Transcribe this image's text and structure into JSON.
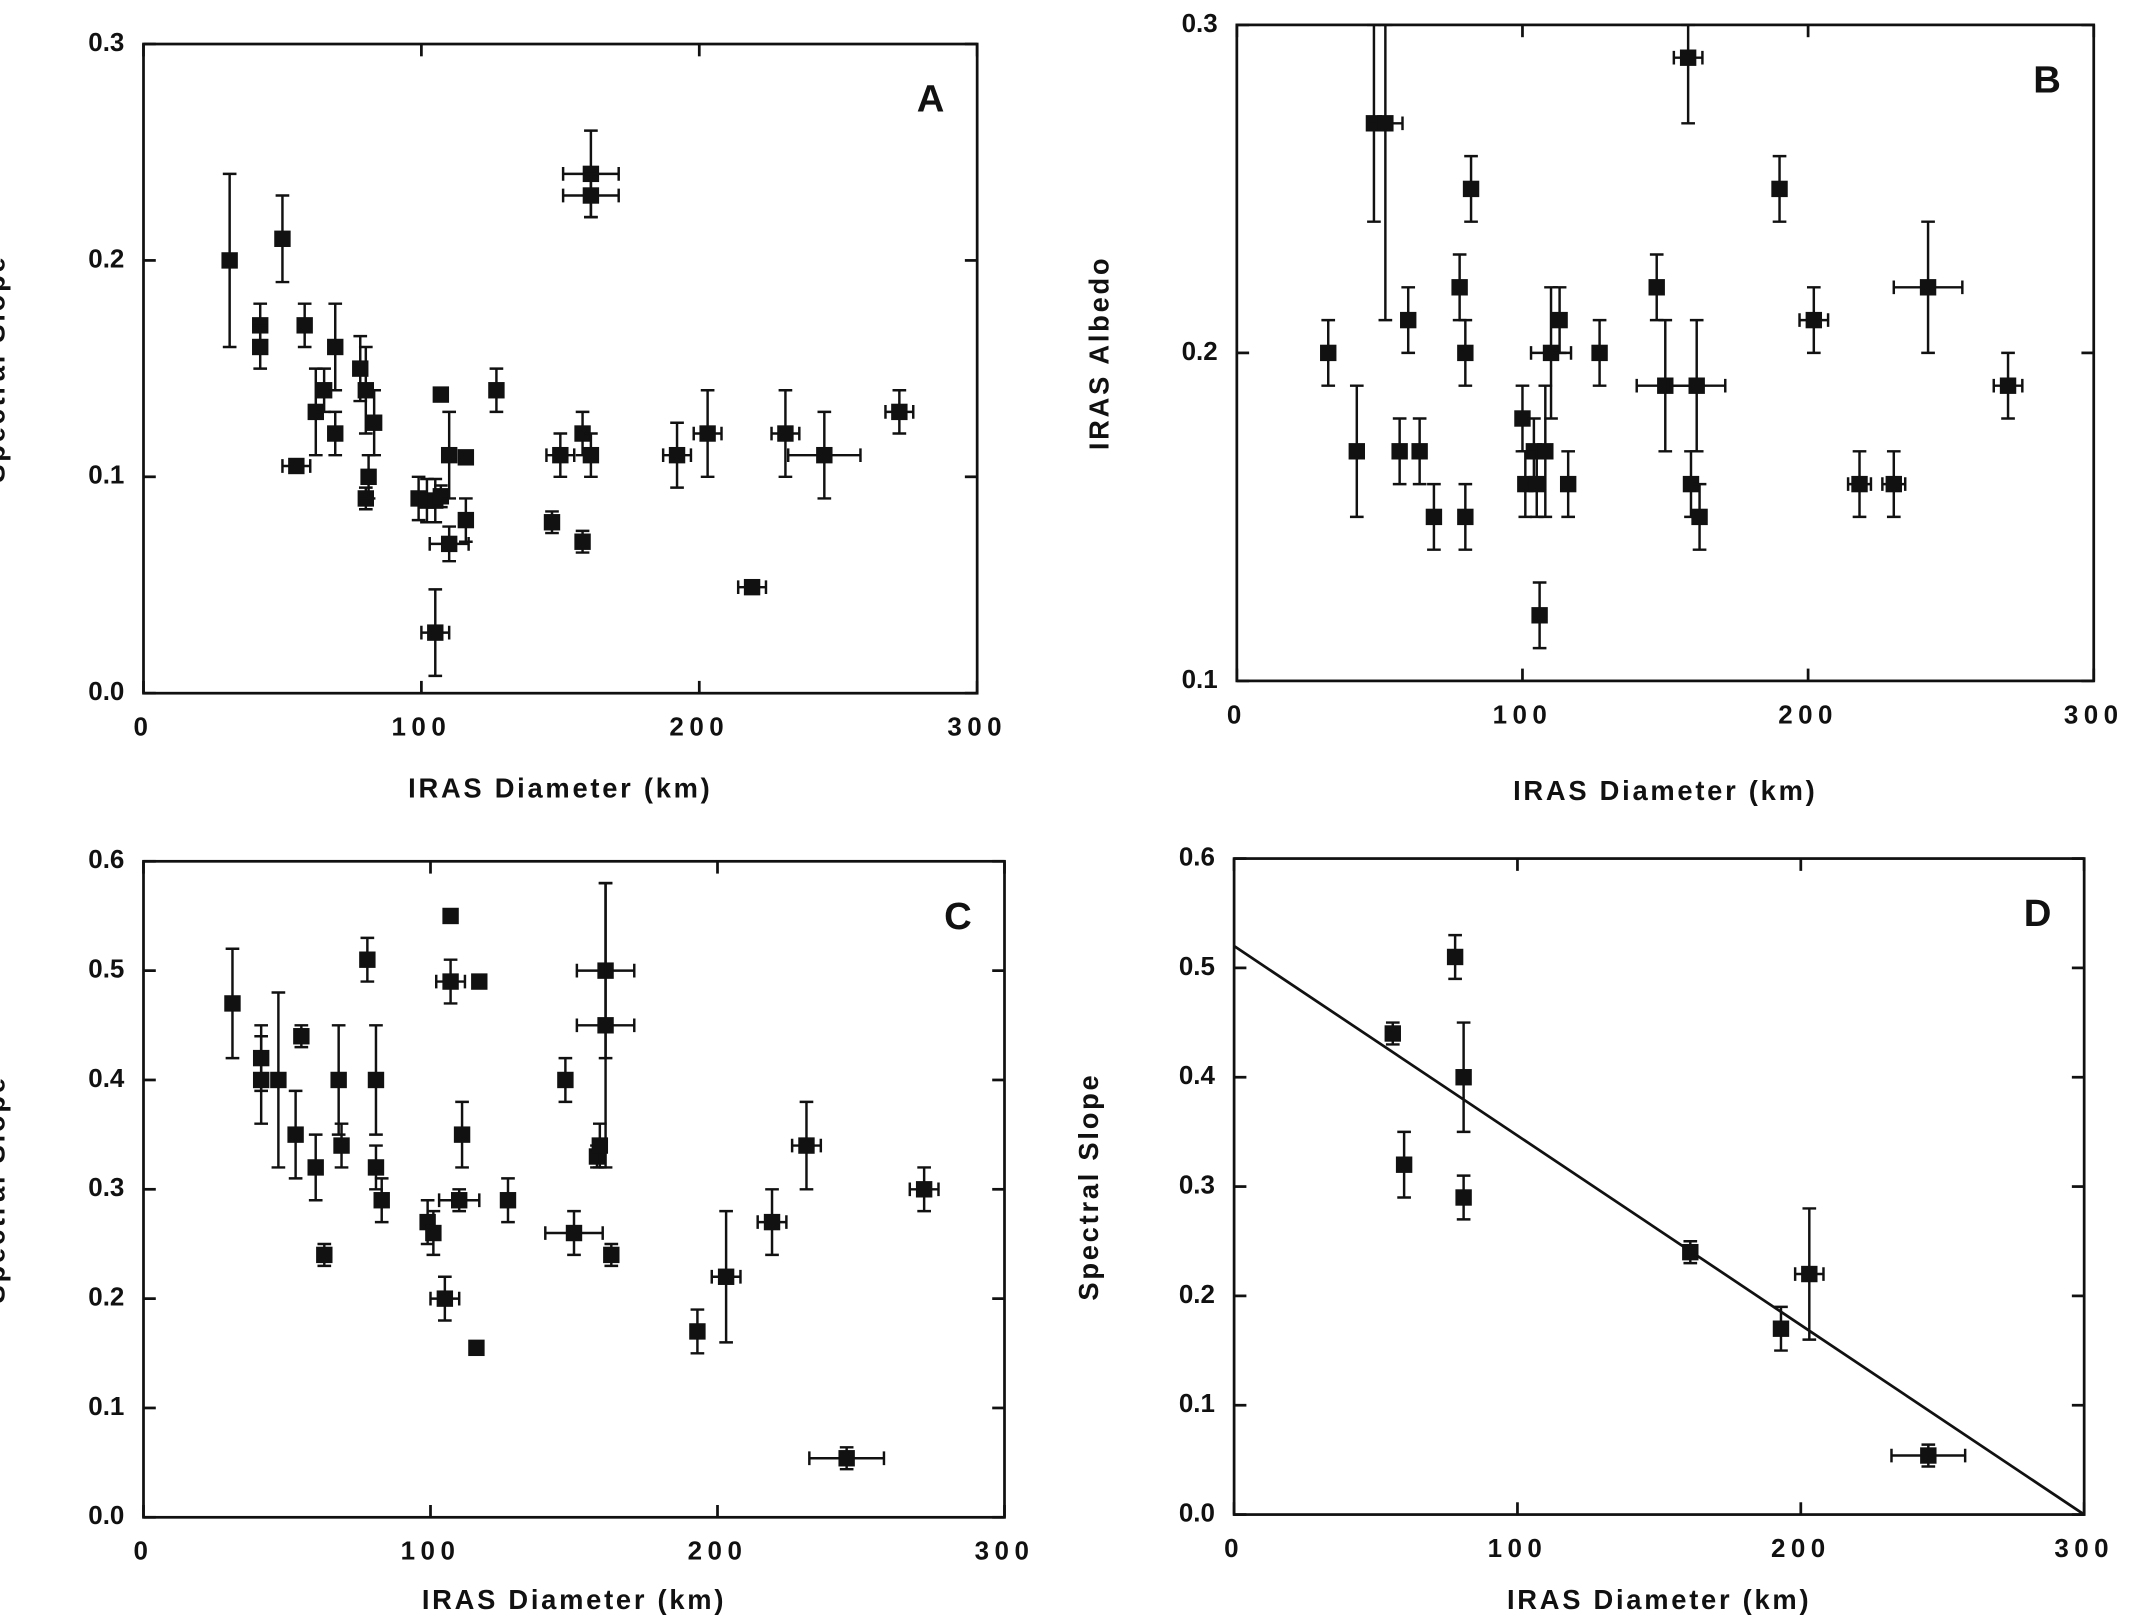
{
  "chart_data": [
    {
      "type": "scatter",
      "label": "A",
      "x_label": "IRAS  Diameter  (km)",
      "y_label": "Spectral  Slope",
      "xlim": [
        0,
        300
      ],
      "ylim": [
        0,
        0.3
      ],
      "xticks": [
        0,
        100,
        200,
        300
      ],
      "yticks": [
        {
          "value": 0,
          "label": "0.0"
        },
        0.1,
        0.2,
        0.3
      ],
      "color": "#111111",
      "x": [
        31,
        42,
        42,
        50,
        55,
        58,
        62,
        65,
        69,
        69,
        78,
        80,
        80,
        81,
        83,
        99,
        102,
        105,
        107,
        107,
        105,
        110,
        110,
        116,
        116,
        127,
        147,
        150,
        158,
        158,
        161,
        161,
        161,
        192,
        203,
        219,
        231,
        245,
        272
      ],
      "values": [
        0.2,
        0.17,
        0.16,
        0.21,
        0.105,
        0.17,
        0.13,
        0.14,
        0.16,
        0.12,
        0.15,
        0.14,
        0.09,
        0.1,
        0.125,
        0.09,
        0.089,
        0.089,
        0.091,
        0.138,
        0.028,
        0.11,
        0.069,
        0.109,
        0.08,
        0.14,
        0.079,
        0.11,
        0.12,
        0.07,
        0.11,
        0.24,
        0.23,
        0.11,
        0.12,
        0.049,
        0.12,
        0.11,
        0.13
      ],
      "y_err": [
        0.04,
        0.01,
        0.01,
        0.02,
        0.003,
        0.01,
        0.02,
        0.01,
        0.02,
        0.01,
        0.015,
        0.02,
        0.005,
        0.01,
        0.015,
        0.01,
        0.01,
        0.01,
        0.005,
        0.003,
        0.02,
        0.02,
        0.008,
        0.003,
        0.01,
        0.01,
        0.005,
        0.01,
        0.01,
        0.005,
        0.01,
        0.02,
        0.01,
        0.015,
        0.02,
        0.002,
        0.02,
        0.02,
        0.01
      ],
      "x_err": [
        null,
        null,
        null,
        null,
        5,
        null,
        null,
        null,
        null,
        null,
        null,
        null,
        null,
        null,
        null,
        null,
        null,
        null,
        null,
        null,
        5,
        null,
        7,
        null,
        null,
        null,
        null,
        5,
        null,
        null,
        null,
        10,
        10,
        5,
        5,
        5,
        5,
        13,
        5
      ]
    },
    {
      "type": "scatter",
      "label": "B",
      "x_label": "IRAS  Diameter  (km)",
      "y_label": "IRAS  Albedo",
      "xlim": [
        0,
        300
      ],
      "ylim": [
        0.1,
        0.3
      ],
      "xticks": [
        0,
        100,
        200,
        300
      ],
      "yticks": [
        0.1,
        0.2,
        0.3
      ],
      "color": "#111111",
      "x": [
        32,
        42,
        48,
        52,
        57,
        60,
        64,
        69,
        78,
        80,
        80,
        82,
        100,
        101,
        104,
        105,
        106,
        108,
        110,
        113,
        116,
        127,
        147,
        150,
        158,
        159,
        161,
        162,
        190,
        202,
        218,
        230,
        242,
        270
      ],
      "values": [
        0.2,
        0.17,
        0.27,
        0.27,
        0.17,
        0.21,
        0.17,
        0.15,
        0.22,
        0.2,
        0.15,
        0.25,
        0.18,
        0.16,
        0.17,
        0.16,
        0.12,
        0.17,
        0.2,
        0.21,
        0.16,
        0.2,
        0.22,
        0.19,
        0.29,
        0.16,
        0.19,
        0.15,
        0.25,
        0.21,
        0.16,
        0.16,
        0.22,
        0.19
      ],
      "y_err": [
        0.01,
        0.02,
        0.03,
        0.06,
        0.01,
        0.01,
        0.01,
        0.01,
        0.01,
        0.01,
        0.01,
        0.01,
        0.01,
        0.01,
        0.01,
        0.01,
        0.01,
        0.02,
        0.02,
        0.01,
        0.01,
        0.01,
        0.01,
        0.02,
        0.02,
        0.01,
        0.02,
        0.01,
        0.01,
        0.01,
        0.01,
        0.01,
        0.02,
        0.01
      ],
      "x_err": [
        null,
        null,
        null,
        6,
        null,
        null,
        null,
        null,
        null,
        null,
        null,
        null,
        null,
        null,
        null,
        null,
        null,
        null,
        7,
        null,
        null,
        null,
        null,
        10,
        5,
        null,
        10,
        null,
        null,
        5,
        4,
        4,
        12,
        5
      ]
    },
    {
      "type": "scatter",
      "label": "C",
      "x_label": "IRAS  Diameter  (km)",
      "y_label": "Spectral  Slope",
      "xlim": [
        0,
        300
      ],
      "ylim": [
        0,
        0.6
      ],
      "xticks": [
        0,
        100,
        200,
        300
      ],
      "yticks": [
        {
          "value": 0,
          "label": "0.0"
        },
        0.1,
        0.2,
        0.3,
        0.4,
        0.5,
        0.6
      ],
      "color": "#111111",
      "x": [
        31,
        41,
        41,
        47,
        53,
        55,
        60,
        63,
        68,
        69,
        78,
        81,
        81,
        83,
        99,
        101,
        105,
        107,
        107,
        110,
        111,
        116,
        117,
        127,
        147,
        150,
        158,
        159,
        161,
        161,
        163,
        193,
        203,
        219,
        231,
        245,
        272
      ],
      "values": [
        0.47,
        0.42,
        0.4,
        0.4,
        0.35,
        0.44,
        0.32,
        0.24,
        0.4,
        0.34,
        0.51,
        0.4,
        0.32,
        0.29,
        0.27,
        0.26,
        0.2,
        0.49,
        0.55,
        0.29,
        0.35,
        0.155,
        0.49,
        0.29,
        0.4,
        0.26,
        0.33,
        0.34,
        0.5,
        0.45,
        0.24,
        0.17,
        0.22,
        0.27,
        0.34,
        0.054,
        0.3
      ],
      "y_err": [
        0.05,
        0.03,
        0.04,
        0.08,
        0.04,
        0.01,
        0.03,
        0.01,
        0.05,
        0.02,
        0.02,
        0.05,
        0.02,
        0.02,
        0.02,
        0.02,
        0.02,
        0.02,
        0.005,
        0.01,
        0.03,
        0.003,
        0.005,
        0.02,
        0.02,
        0.02,
        0.01,
        0.02,
        0.08,
        0.13,
        0.01,
        0.02,
        0.06,
        0.03,
        0.04,
        0.01,
        0.02
      ],
      "x_err": [
        null,
        null,
        null,
        null,
        null,
        null,
        null,
        null,
        null,
        null,
        null,
        null,
        null,
        null,
        null,
        null,
        5,
        5,
        null,
        7,
        null,
        null,
        null,
        null,
        null,
        10,
        null,
        null,
        10,
        10,
        null,
        null,
        5,
        5,
        5,
        13,
        5
      ]
    },
    {
      "type": "scatter",
      "label": "D",
      "x_label": "IRAS  Diameter  (km)",
      "y_label": "Spectral  Slope",
      "xlim": [
        0,
        300
      ],
      "ylim": [
        0,
        0.6
      ],
      "xticks": [
        0,
        100,
        200,
        300
      ],
      "yticks": [
        {
          "value": 0,
          "label": "0.0"
        },
        0.1,
        0.2,
        0.3,
        0.4,
        0.5,
        0.6
      ],
      "color": "#111111",
      "x": [
        56,
        60,
        78,
        81,
        81,
        161,
        193,
        203,
        245
      ],
      "values": [
        0.44,
        0.32,
        0.51,
        0.4,
        0.29,
        0.24,
        0.17,
        0.22,
        0.054
      ],
      "y_err": [
        0.01,
        0.03,
        0.02,
        0.05,
        0.02,
        0.01,
        0.02,
        0.06,
        0.01
      ],
      "x_err": [
        null,
        null,
        null,
        null,
        null,
        null,
        null,
        5,
        13
      ],
      "fit": {
        "x": [
          0,
          300
        ],
        "values": [
          0.52,
          0
        ]
      }
    }
  ]
}
